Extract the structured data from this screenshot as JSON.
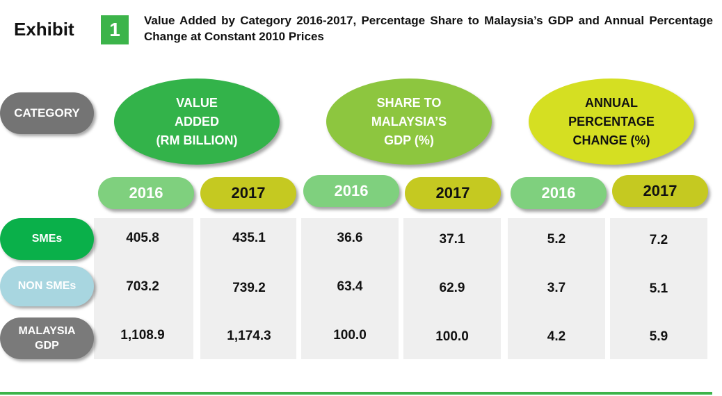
{
  "header": {
    "exhibit_label": "Exhibit",
    "exhibit_number": "1",
    "title": "Value Added by Category 2016-2017, Percentage Share to Malaysia’s GDP and Annual Percentage Change at Constant 2010 Prices"
  },
  "category_label": "CATEGORY",
  "groups": [
    {
      "lines": [
        "VALUE",
        "ADDED",
        "(RM BILLION)"
      ],
      "color": "#33b34a"
    },
    {
      "lines": [
        "SHARE TO",
        "MALAYSIA’S",
        "GDP (%)"
      ],
      "color": "#8dc63f"
    },
    {
      "lines": [
        "ANNUAL",
        "PERCENTAGE",
        "CHANGE (%)"
      ],
      "color": "#d5df22"
    }
  ],
  "years": [
    "2016",
    "2017",
    "2016",
    "2017",
    "2016",
    "2017"
  ],
  "rows": [
    {
      "label_lines": [
        "SMEs"
      ],
      "values": [
        "405.8",
        "435.1",
        "36.6",
        "37.1",
        "5.2",
        "7.2"
      ]
    },
    {
      "label_lines": [
        "NON SMEs"
      ],
      "values": [
        "703.2",
        "739.2",
        "63.4",
        "62.9",
        "3.7",
        "5.1"
      ]
    },
    {
      "label_lines": [
        "MALAYSIA",
        "GDP"
      ],
      "values": [
        "1,108.9",
        "1,174.3",
        "100.0",
        "100.0",
        "4.2",
        "5.9"
      ]
    }
  ],
  "colors": {
    "accent_green": "#3cb44a",
    "light_year": "#7fd07e",
    "dark_year": "#c5c921"
  }
}
